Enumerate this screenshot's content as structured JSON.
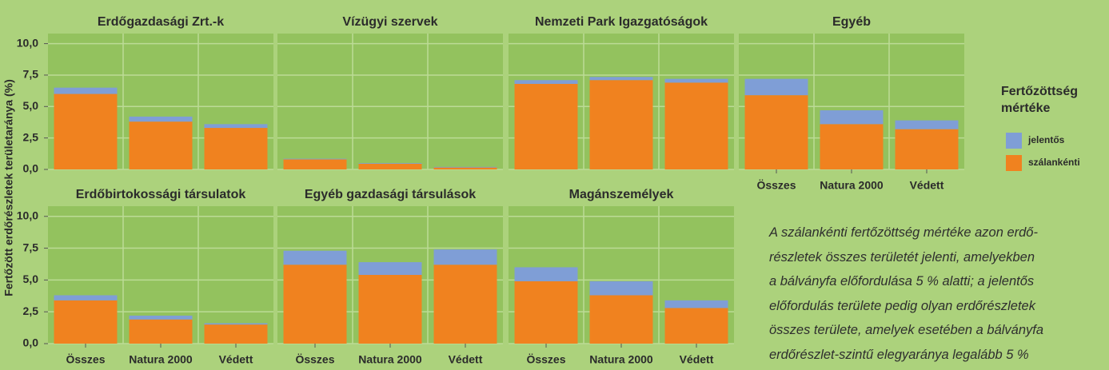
{
  "chart_data": {
    "type": "bar",
    "stacked": true,
    "y_label": "Fertőzött erdőrészletek területaránya (%)",
    "categories": [
      "Összes",
      "Natura 2000",
      "Védett"
    ],
    "ylim": [
      0,
      10.8
    ],
    "yticks": [
      {
        "value": 0,
        "label": "0,0"
      },
      {
        "value": 2.5,
        "label": "2,5"
      },
      {
        "value": 5,
        "label": "5,0"
      },
      {
        "value": 7.5,
        "label": "7,5"
      },
      {
        "value": 10,
        "label": "10,0"
      }
    ],
    "grid": true,
    "legend_title": "Fertőzöttség mértéke",
    "legend": "right",
    "series": [
      {
        "name": "jelentős",
        "color": "#7f9ed6"
      },
      {
        "name": "szálankénti",
        "color": "#f0821f"
      }
    ],
    "panels": [
      {
        "title": "Erdőgazdasági Zrt.-k",
        "series": [
          {
            "values": [
              0.5,
              0.4,
              0.3
            ]
          },
          {
            "values": [
              6.0,
              3.8,
              3.3
            ]
          }
        ]
      },
      {
        "title": "Vízügyi szervek",
        "series": [
          {
            "values": [
              0.05,
              0.05,
              0.05
            ]
          },
          {
            "values": [
              0.8,
              0.45,
              0.15
            ]
          }
        ]
      },
      {
        "title": "Nemzeti Park Igazgatóságok",
        "series": [
          {
            "values": [
              0.3,
              0.25,
              0.3
            ]
          },
          {
            "values": [
              6.8,
              7.1,
              6.9
            ]
          }
        ]
      },
      {
        "title": "Egyéb",
        "series": [
          {
            "values": [
              1.3,
              1.1,
              0.7
            ]
          },
          {
            "values": [
              5.9,
              3.6,
              3.2
            ]
          }
        ]
      },
      {
        "title": "Erdőbirtokossági társulatok",
        "series": [
          {
            "values": [
              0.4,
              0.3,
              0.1
            ]
          },
          {
            "values": [
              3.4,
              1.9,
              1.5
            ]
          }
        ]
      },
      {
        "title": "Egyéb gazdasági társulások",
        "series": [
          {
            "values": [
              1.1,
              1.0,
              1.2
            ]
          },
          {
            "values": [
              6.2,
              5.4,
              6.2
            ]
          }
        ]
      },
      {
        "title": "Magánszemélyek",
        "series": [
          {
            "values": [
              1.1,
              1.1,
              0.6
            ]
          },
          {
            "values": [
              4.9,
              3.8,
              2.8
            ]
          }
        ]
      }
    ],
    "note": [
      "A szálankénti fertőzöttség mértéke azon erdő-",
      "részletek összes területét jelenti, amelyekben",
      "a bálványfa előfordulása 5 % alatti; a jelentős",
      "előfordulás területe pedig olyan erdőrészletek",
      "összes területe, amelyek esetében a bálványfa",
      "erdőrészlet-szintű elegyaránya legalább 5 %"
    ]
  }
}
